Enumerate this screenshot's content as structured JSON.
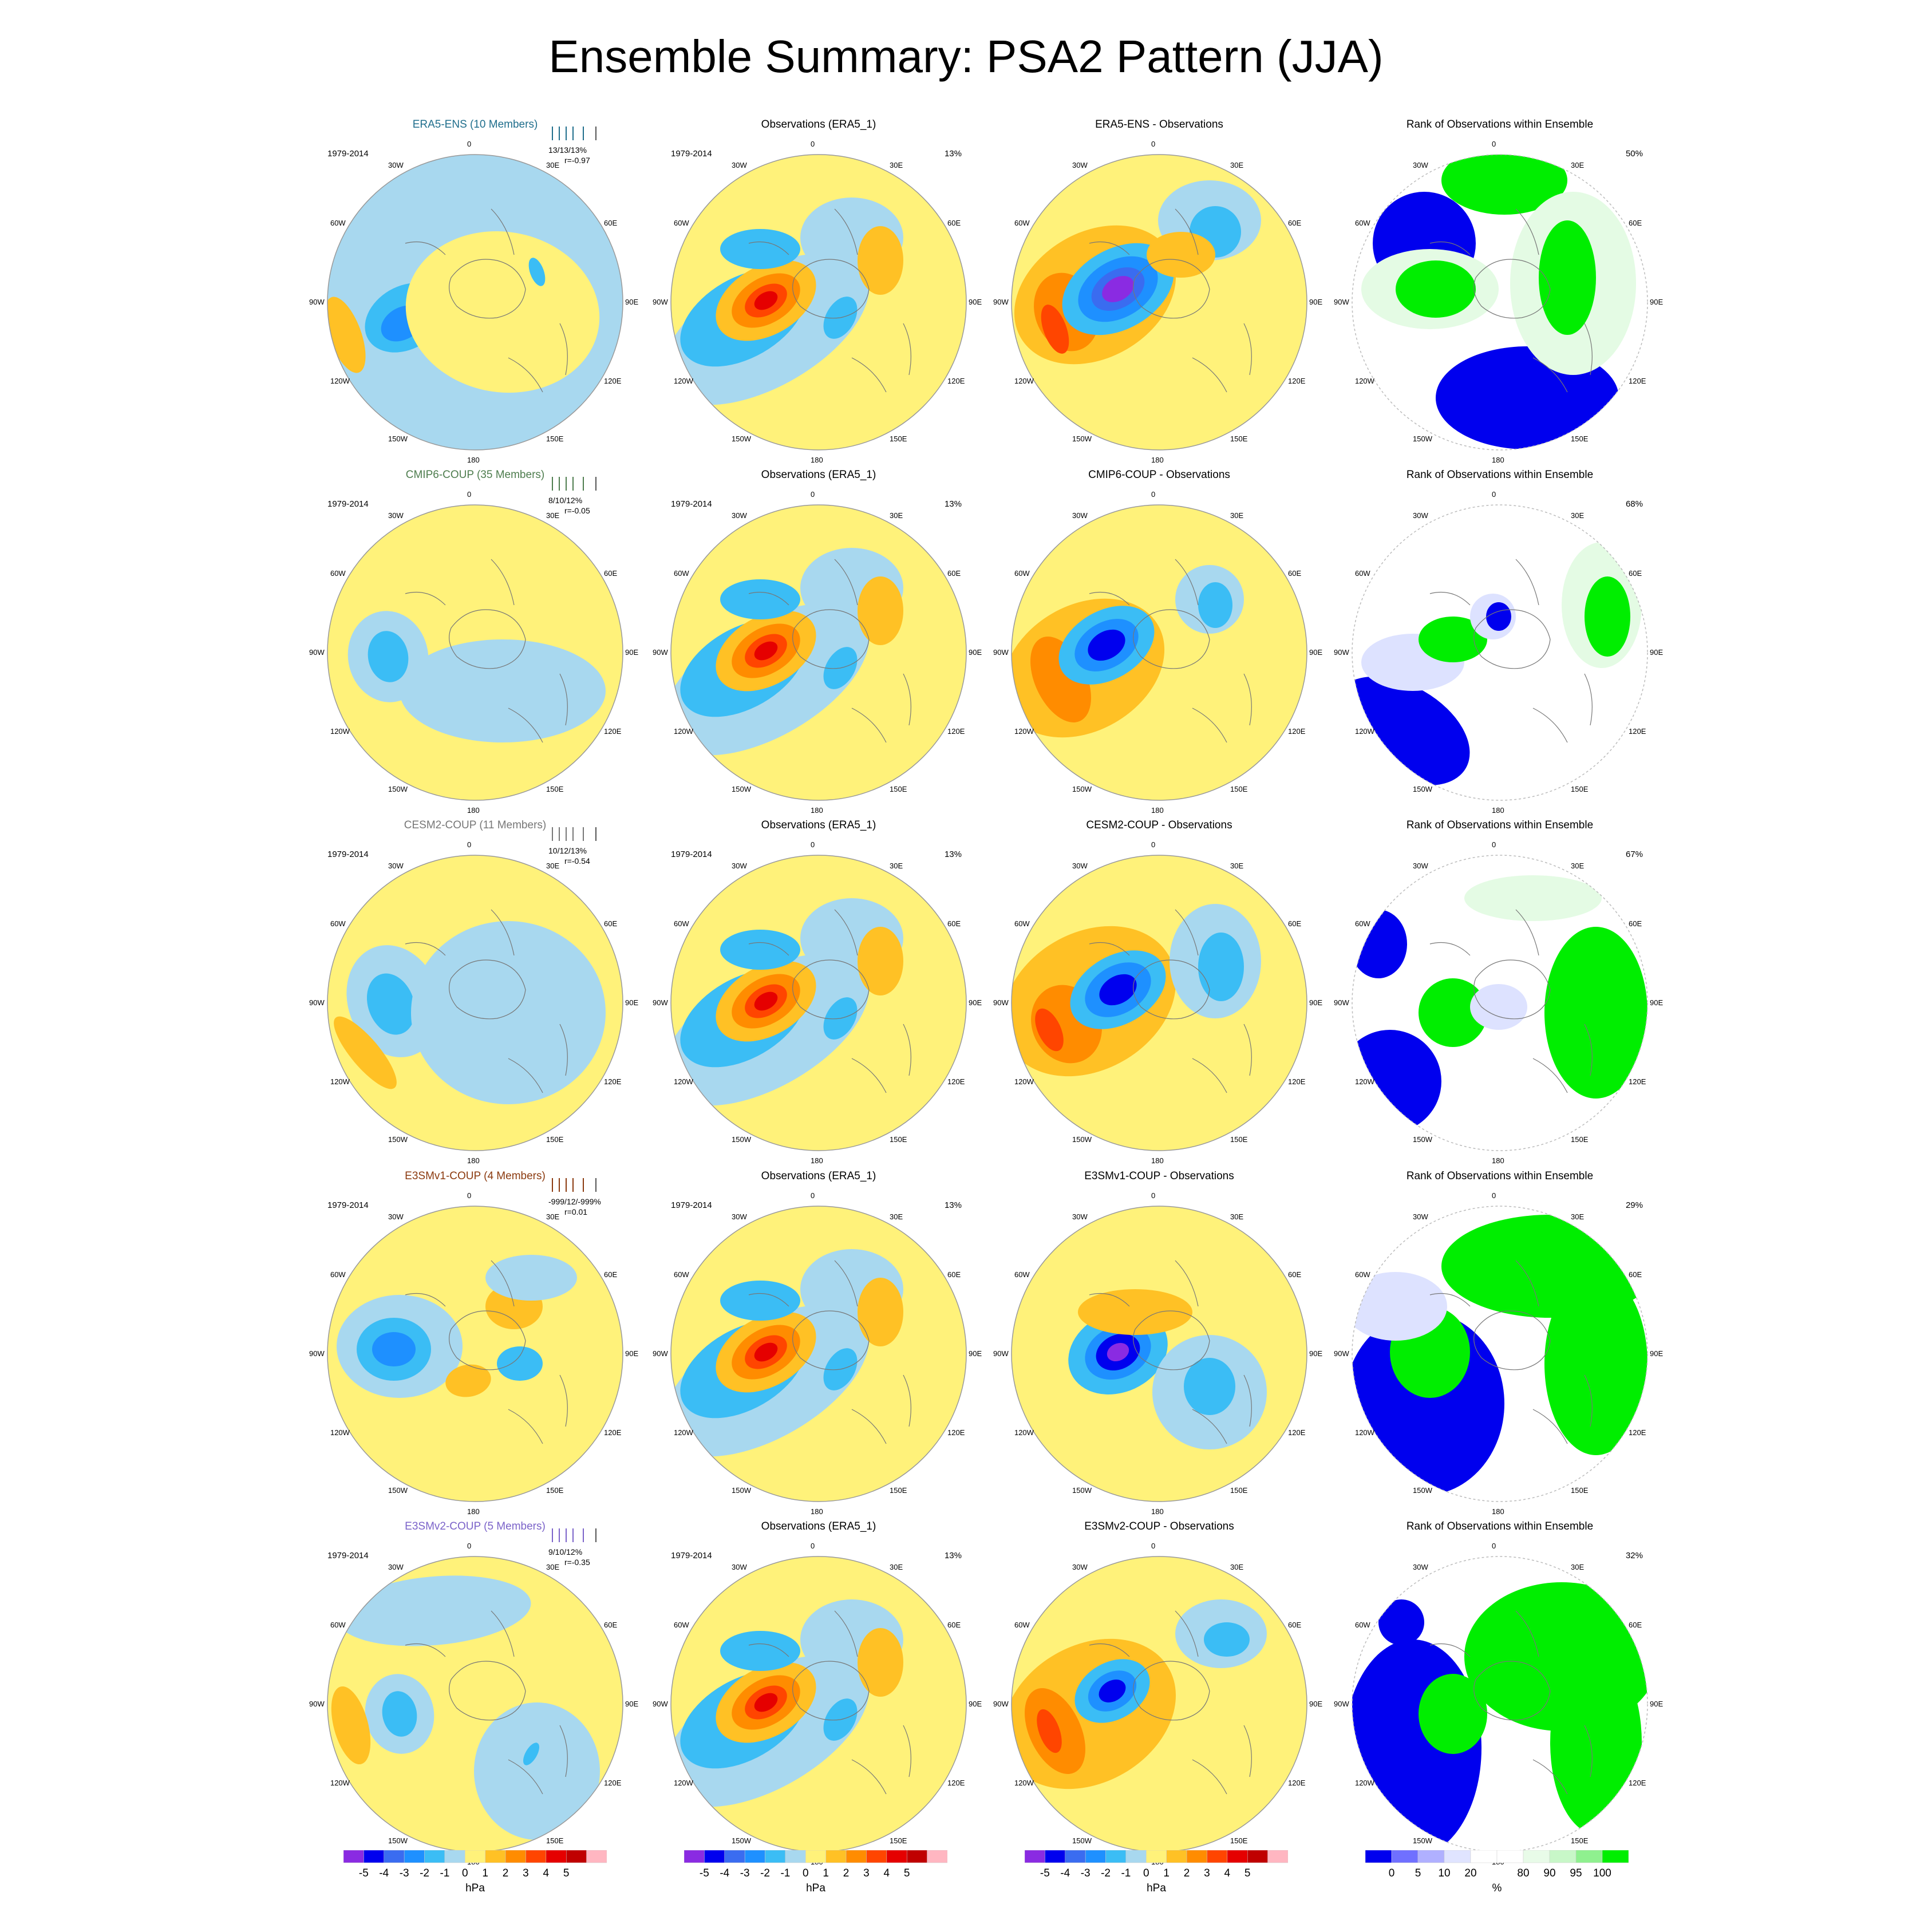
{
  "title": "Ensemble Summary: PSA2 Pattern (JJA)",
  "longitude_labels": [
    "0",
    "30E",
    "60E",
    "90E",
    "120E",
    "150E",
    "180",
    "150W",
    "120W",
    "90W",
    "60W",
    "30W"
  ],
  "rows": [
    {
      "model": {
        "title": "ERA5-ENS (10 Members)",
        "title_color": "#1f6e8c",
        "years": "1979-2014",
        "stats_line1": "13/13/13%",
        "stats_line2": "r=-0.97",
        "bar_color": "#1f6e8c"
      },
      "obs": {
        "title": "Observations (ERA5_1)",
        "years": "1979-2014",
        "pct": "13%"
      },
      "diff": {
        "title": "ERA5-ENS - Observations"
      },
      "rank": {
        "title": "Rank of Observations within Ensemble",
        "pct": "50%"
      }
    },
    {
      "model": {
        "title": "CMIP6-COUP (35 Members)",
        "title_color": "#4e7d4e",
        "years": "1979-2014",
        "stats_line1": "8/10/12%",
        "stats_line2": "r=-0.05",
        "bar_color": "#4e7d4e"
      },
      "obs": {
        "title": "Observations (ERA5_1)",
        "years": "1979-2014",
        "pct": "13%"
      },
      "diff": {
        "title": "CMIP6-COUP - Observations"
      },
      "rank": {
        "title": "Rank of Observations within Ensemble",
        "pct": "68%"
      }
    },
    {
      "model": {
        "title": "CESM2-COUP (11 Members)",
        "title_color": "#777777",
        "years": "1979-2014",
        "stats_line1": "10/12/13%",
        "stats_line2": "r=-0.54",
        "bar_color": "#777777"
      },
      "obs": {
        "title": "Observations (ERA5_1)",
        "years": "1979-2014",
        "pct": "13%"
      },
      "diff": {
        "title": "CESM2-COUP - Observations"
      },
      "rank": {
        "title": "Rank of Observations within Ensemble",
        "pct": "67%"
      }
    },
    {
      "model": {
        "title": "E3SMv1-COUP (4 Members)",
        "title_color": "#8b3a0f",
        "years": "1979-2014",
        "stats_line1": "-999/12/-999%",
        "stats_line2": "r=0.01",
        "bar_color": "#8b3a0f"
      },
      "obs": {
        "title": "Observations (ERA5_1)",
        "years": "1979-2014",
        "pct": "13%"
      },
      "diff": {
        "title": "E3SMv1-COUP - Observations"
      },
      "rank": {
        "title": "Rank of Observations within Ensemble",
        "pct": "29%"
      }
    },
    {
      "model": {
        "title": "E3SMv2-COUP (5 Members)",
        "title_color": "#7b63c9",
        "years": "1979-2014",
        "stats_line1": "9/10/12%",
        "stats_line2": "r=-0.35",
        "bar_color": "#7b63c9"
      },
      "obs": {
        "title": "Observations (ERA5_1)",
        "years": "1979-2014",
        "pct": "13%"
      },
      "diff": {
        "title": "E3SMv2-COUP - Observations"
      },
      "rank": {
        "title": "Rank of Observations within Ensemble",
        "pct": "32%"
      }
    }
  ],
  "colorbar_hpa": {
    "colors": [
      "#8a2be2",
      "#0000ee",
      "#3a6cf0",
      "#1e90ff",
      "#3bbdf5",
      "#a8d8ef",
      "#fff27a",
      "#ffc125",
      "#ff8c00",
      "#ff4500",
      "#e50000",
      "#c00000",
      "#ffb6c1"
    ],
    "tick_labels": [
      "-5",
      "-4",
      "-3",
      "-2",
      "-1",
      "0",
      "1",
      "2",
      "3",
      "4",
      "5"
    ],
    "unit": "hPa"
  },
  "colorbar_rank": {
    "colors": [
      "#0000ee",
      "#7070ff",
      "#b0b0ff",
      "#e0e4ff",
      "#ffffff",
      "#ffffff",
      "#e8fbe8",
      "#c8f7c8",
      "#8ff08f",
      "#00ee00"
    ],
    "tick_labels": [
      "0",
      "5",
      "10",
      "20",
      "80",
      "90",
      "95",
      "100"
    ],
    "unit": "%"
  },
  "field_colors": {
    "neg5": "#8a2be2",
    "neg4": "#0000ee",
    "neg3": "#3a6cf0",
    "neg2": "#1e90ff",
    "neg1": "#3bbdf5",
    "neg0": "#a8d8ef",
    "pos0": "#fff27a",
    "pos1": "#ffc125",
    "pos2": "#ff8c00",
    "pos3": "#ff4500",
    "pos4": "#e50000",
    "rank_low": "#0000ee",
    "rank_mid": "#dde2ff",
    "rank_high": "#00ee00",
    "rank_pale": "#e4fbe4"
  }
}
